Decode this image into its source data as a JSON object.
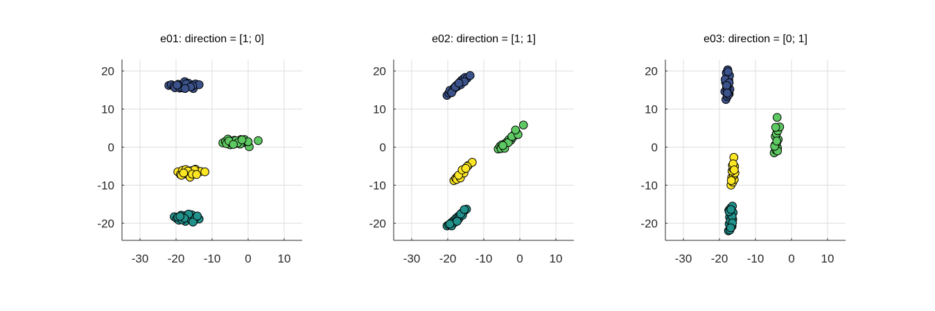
{
  "chart_data": [
    {
      "type": "scatter",
      "title": "e01: direction = [1; 0]",
      "xlabel": "",
      "ylabel": "",
      "xlim": [
        -35,
        15
      ],
      "ylim": [
        -24.5,
        23
      ],
      "xticks": [
        -30,
        -20,
        -10,
        0,
        10
      ],
      "yticks": [
        -20,
        -10,
        0,
        10,
        20
      ],
      "xtick_labels": [
        "-30",
        "-20",
        "-10",
        "0",
        "10"
      ],
      "ytick_labels": [
        "-20",
        "-10",
        "0",
        "10",
        "20"
      ],
      "grid": true,
      "legend": "none",
      "series": [
        {
          "color": "#3b528b",
          "x": [
            -22,
            -21.3,
            -20.6,
            -20,
            -19.4,
            -18.8,
            -18.2,
            -17.6,
            -17,
            -16.4,
            -15.8,
            -15.2,
            -14.6,
            -13.6,
            -20.3,
            -19,
            -17.8,
            -16.6,
            -15.4,
            -18.4,
            -17.2,
            -16,
            -19.7,
            -17.5
          ],
          "y": [
            16.2,
            16.4,
            16,
            15.8,
            16.5,
            16.2,
            15.6,
            17.2,
            16.3,
            15.9,
            16.4,
            15.4,
            16.6,
            16.4,
            15.6,
            15.5,
            15.5,
            16.8,
            16.1,
            15.7,
            16.6,
            15.8,
            16.3,
            15.4
          ]
        },
        {
          "color": "#5ec962",
          "x": [
            -7,
            -6.3,
            -5.6,
            -5,
            -4.4,
            -3.8,
            -3.2,
            -2.6,
            -2,
            -1.4,
            -0.8,
            -0.2,
            0.3,
            2.8,
            -6,
            -4.7,
            -3.5,
            -2.2,
            -1,
            0,
            -5.3,
            -2.9,
            -1.7,
            -4.1
          ],
          "y": [
            1.1,
            1.5,
            2.1,
            0.6,
            1.3,
            1.8,
            1,
            1.4,
            2,
            1.2,
            1.6,
            1.3,
            0.1,
            1.7,
            0.9,
            1.2,
            1.7,
            0.8,
            2,
            1.4,
            1.6,
            1.1,
            1.9,
            0.7
          ]
        },
        {
          "color": "#fde725",
          "x": [
            -19.5,
            -18.8,
            -18.2,
            -17.6,
            -17,
            -16.4,
            -15.8,
            -15.2,
            -14.6,
            -14,
            -13.2,
            -12,
            -18.5,
            -17.3,
            -16.1,
            -14.9,
            -16.7,
            -15.5,
            -17.9,
            -14.3
          ],
          "y": [
            -6.5,
            -7.2,
            -6.1,
            -7,
            -6.6,
            -7.5,
            -6.2,
            -6.9,
            -5.8,
            -6.7,
            -6.4,
            -6.5,
            -7.4,
            -5.9,
            -7.9,
            -6,
            -6.3,
            -7.1,
            -6.8,
            -7.2
          ]
        },
        {
          "color": "#21918c",
          "x": [
            -20.5,
            -19.8,
            -19.2,
            -18.6,
            -18,
            -17.4,
            -16.8,
            -16.2,
            -15.6,
            -15,
            -14.4,
            -13.6,
            -19.5,
            -18.3,
            -17.1,
            -15.9,
            -14.7,
            -16.5,
            -17.7,
            -18.9,
            -15.3,
            -14.1
          ],
          "y": [
            -18.3,
            -18.8,
            -19.2,
            -17.9,
            -18.5,
            -19.5,
            -18,
            -18.7,
            -17.8,
            -19.3,
            -18.4,
            -18.9,
            -18.4,
            -19.1,
            -17.9,
            -19,
            -18.6,
            -17.6,
            -18.7,
            -18.2,
            -19.7,
            -18.1
          ]
        }
      ]
    },
    {
      "type": "scatter",
      "title": "e02: direction = [1; 1]",
      "xlabel": "",
      "ylabel": "",
      "xlim": [
        -35,
        15
      ],
      "ylim": [
        -24.5,
        23
      ],
      "xticks": [
        -30,
        -20,
        -10,
        0,
        10
      ],
      "yticks": [
        -20,
        -10,
        0,
        10,
        20
      ],
      "xtick_labels": [
        "-30",
        "-20",
        "-10",
        "0",
        "10"
      ],
      "ytick_labels": [
        "-20",
        "-10",
        "0",
        "10",
        "20"
      ],
      "grid": true,
      "legend": "none",
      "series": [
        {
          "color": "#3b528b",
          "x": [
            -20.2,
            -19.7,
            -19.2,
            -18.7,
            -18.2,
            -17.7,
            -17.2,
            -16.7,
            -16.2,
            -15.7,
            -15.2,
            -14.6,
            -13.8,
            -19.4,
            -18.4,
            -17.4,
            -16.4,
            -15.4,
            -18.9,
            -17.9,
            -16.9
          ],
          "y": [
            13.6,
            14.2,
            14.6,
            15.1,
            15.6,
            16.1,
            16.5,
            17,
            17.5,
            17.9,
            18.3,
            18.1,
            18.8,
            14.9,
            15.2,
            15.9,
            16.4,
            17.2,
            14.3,
            15.8,
            16.8
          ]
        },
        {
          "color": "#5ec962",
          "x": [
            -6,
            -5.5,
            -5,
            -4.5,
            -4,
            -3.5,
            -3,
            -2.5,
            -2,
            -1.5,
            -1,
            1,
            -5.2,
            -4.2,
            -3.2,
            -2.2,
            -4.7,
            -0.5,
            -1.2
          ],
          "y": [
            -0.5,
            0.2,
            0.6,
            -0.2,
            1,
            1.4,
            2,
            1.8,
            2.5,
            3.3,
            4,
            5.8,
            -0.4,
            -0.3,
            1.2,
            2.8,
            0.4,
            3.3,
            4.5
          ]
        },
        {
          "color": "#fde725",
          "x": [
            -18.3,
            -17.8,
            -17.3,
            -16.8,
            -16.3,
            -15.8,
            -15.3,
            -14.8,
            -14.3,
            -13.2,
            -17.5,
            -16.5,
            -15.5,
            -14.6,
            -17,
            -16,
            -15
          ],
          "y": [
            -8.8,
            -8.2,
            -7.7,
            -7.4,
            -6.9,
            -6.4,
            -5.8,
            -5.3,
            -4.8,
            -4,
            -8.5,
            -8.1,
            -6.8,
            -5.1,
            -7.4,
            -6,
            -5.6
          ]
        },
        {
          "color": "#21918c",
          "x": [
            -20.2,
            -19.7,
            -19.2,
            -18.7,
            -18.2,
            -17.7,
            -17.2,
            -16.7,
            -16.2,
            -15.7,
            -15.2,
            -14.8,
            -18.9,
            -17.9,
            -16.9,
            -15.9,
            -19.4,
            -17.4,
            -16.4,
            -15.4
          ],
          "y": [
            -20.7,
            -20.4,
            -20,
            -19.6,
            -19.2,
            -18.7,
            -18.3,
            -17.9,
            -17.4,
            -17,
            -16.6,
            -16.3,
            -20.7,
            -19.7,
            -18.8,
            -17.9,
            -20.2,
            -19.5,
            -17.6,
            -16.4
          ]
        }
      ]
    },
    {
      "type": "scatter",
      "title": "e03: direction = [0; 1]",
      "xlabel": "",
      "ylabel": "",
      "xlim": [
        -35,
        15
      ],
      "ylim": [
        -24.5,
        23
      ],
      "xticks": [
        -30,
        -20,
        -10,
        0,
        10
      ],
      "yticks": [
        -20,
        -10,
        0,
        10,
        20
      ],
      "xtick_labels": [
        "-30",
        "-20",
        "-10",
        "0",
        "10"
      ],
      "ytick_labels": [
        "-20",
        "-10",
        "0",
        "10",
        "20"
      ],
      "grid": true,
      "legend": "none",
      "series": [
        {
          "color": "#3b528b",
          "x": [
            -18.2,
            -17.8,
            -17.3,
            -18.5,
            -17.1,
            -18,
            -17.6,
            -18.3,
            -17.4,
            -17.9,
            -17.2,
            -18.1,
            -17.7,
            -18.4,
            -17.5,
            -17.9,
            -17.3,
            -18,
            -17.6,
            -17.8
          ],
          "y": [
            12.5,
            13.3,
            14,
            14.6,
            15.2,
            15.8,
            16.4,
            17,
            17.6,
            18.2,
            18.8,
            19.5,
            20.3,
            17.8,
            13.8,
            15,
            16.9,
            16.2,
            19.8,
            14.2
          ]
        },
        {
          "color": "#5ec962",
          "x": [
            -4.8,
            -4.3,
            -3.9,
            -4.6,
            -4.1,
            -3.7,
            -4.5,
            -4.2,
            -3.8,
            -3.3,
            -4.4,
            -4,
            -3.9,
            -4.7,
            -4.1
          ],
          "y": [
            -1.5,
            -0.8,
            -0.2,
            0.5,
            1.2,
            2,
            2.8,
            3.5,
            4.3,
            5.3,
            5.2,
            7.8,
            -1,
            0.2,
            1.6
          ]
        },
        {
          "color": "#fde725",
          "x": [
            -16.8,
            -16.3,
            -15.9,
            -16.6,
            -16.1,
            -15.7,
            -16.5,
            -16.2,
            -15.8,
            -16.4,
            -16,
            -16.7,
            -16.2,
            -15.9
          ],
          "y": [
            -10,
            -9.2,
            -8.5,
            -8,
            -7.4,
            -6.8,
            -6.3,
            -5.7,
            -5.1,
            -4.8,
            -2.7,
            -8.8,
            -4.4,
            -6
          ]
        },
        {
          "color": "#21918c",
          "x": [
            -17.5,
            -17,
            -16.5,
            -17.3,
            -16.8,
            -16.3,
            -17.2,
            -16.7,
            -16.2,
            -17.4,
            -16.9,
            -16.4,
            -17.1,
            -16.6,
            -17,
            -16.5,
            -17.3,
            -16.8,
            -16.4,
            -16.9
          ],
          "y": [
            -22,
            -21.4,
            -20.8,
            -20.2,
            -19.6,
            -19,
            -18.4,
            -17.8,
            -17.2,
            -16.6,
            -16,
            -15.5,
            -21.8,
            -20.9,
            -19.4,
            -18.2,
            -17,
            -16.4,
            -19.9,
            -21.2
          ]
        }
      ]
    }
  ]
}
